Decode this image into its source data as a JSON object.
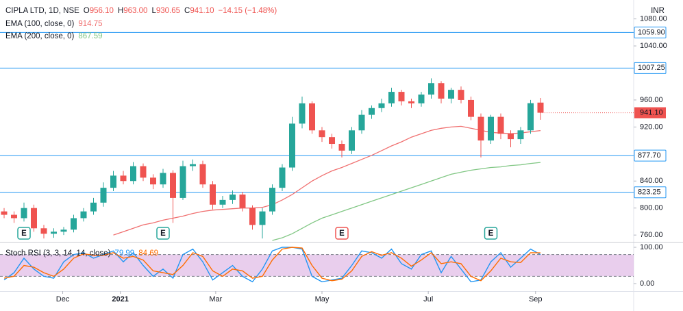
{
  "chart_data": {
    "type": "candlestick",
    "symbol": "CIPLA LTD, 1D, NSE",
    "ohlc_legend": [
      {
        "label": "O",
        "value": 956.1,
        "value_label": "956.10"
      },
      {
        "label": "H",
        "value": 963,
        "value_label": "963.00"
      },
      {
        "label": "L",
        "value": 930.65,
        "value_label": "930.65"
      },
      {
        "label": "C",
        "value": 941.1,
        "value_label": "941.10"
      }
    ],
    "change": "−14.15 (−1.48%)",
    "currency": "INR",
    "up_color": "#26a69a",
    "down_color": "#ef5350",
    "open": [
      795,
      790,
      785,
      800,
      770,
      762,
      765,
      768,
      785,
      795,
      808,
      830,
      848,
      840,
      862,
      845,
      835,
      852,
      815,
      862,
      865,
      835,
      805,
      812,
      820,
      800,
      775,
      795,
      830,
      860,
      925,
      955,
      915,
      905,
      895,
      885,
      915,
      938,
      948,
      955,
      972,
      958,
      955,
      968,
      985,
      962,
      975,
      960,
      935,
      900,
      935,
      910,
      902,
      915,
      956.1
    ],
    "high": [
      800,
      795,
      808,
      805,
      775,
      770,
      772,
      790,
      800,
      815,
      838,
      855,
      855,
      868,
      866,
      850,
      858,
      856,
      870,
      872,
      870,
      840,
      818,
      826,
      824,
      804,
      800,
      835,
      865,
      935,
      965,
      958,
      920,
      910,
      900,
      920,
      945,
      952,
      962,
      978,
      975,
      962,
      972,
      992,
      988,
      978,
      980,
      965,
      940,
      938,
      940,
      915,
      920,
      960,
      963
    ],
    "low": [
      785,
      778,
      780,
      765,
      755,
      756,
      760,
      764,
      780,
      790,
      802,
      825,
      835,
      835,
      840,
      828,
      830,
      778,
      812,
      855,
      830,
      798,
      800,
      806,
      795,
      768,
      755,
      790,
      825,
      855,
      918,
      910,
      898,
      888,
      875,
      880,
      910,
      932,
      942,
      950,
      952,
      948,
      950,
      962,
      955,
      955,
      955,
      930,
      875,
      895,
      902,
      890,
      895,
      910,
      930.65
    ],
    "close": [
      790,
      785,
      800,
      770,
      762,
      765,
      768,
      785,
      795,
      808,
      830,
      848,
      840,
      862,
      845,
      835,
      852,
      815,
      862,
      865,
      835,
      805,
      812,
      820,
      800,
      775,
      795,
      830,
      860,
      925,
      955,
      915,
      905,
      895,
      885,
      915,
      938,
      948,
      955,
      972,
      958,
      955,
      968,
      985,
      962,
      975,
      960,
      935,
      900,
      935,
      910,
      902,
      915,
      955.25,
      941.1
    ],
    "series": [
      {
        "name": "EMA (100, close, 0)",
        "value_label": "914.75",
        "color": "#f07070",
        "values": [
          null,
          null,
          null,
          null,
          null,
          null,
          null,
          null,
          null,
          null,
          null,
          760,
          765,
          770,
          775,
          778,
          782,
          785,
          788,
          792,
          795,
          797,
          798,
          799,
          800,
          800,
          801,
          805,
          812,
          820,
          830,
          840,
          848,
          855,
          860,
          866,
          872,
          878,
          885,
          892,
          898,
          905,
          910,
          915,
          918,
          920,
          921,
          918,
          915,
          912,
          911,
          910,
          911,
          913,
          914.75
        ]
      },
      {
        "name": "EMA (200, close, 0)",
        "value_label": "867.59",
        "color": "#81c784",
        "values": [
          null,
          null,
          null,
          null,
          null,
          null,
          null,
          null,
          null,
          null,
          null,
          null,
          null,
          null,
          null,
          null,
          null,
          null,
          null,
          null,
          null,
          null,
          null,
          null,
          null,
          null,
          null,
          752,
          756,
          762,
          770,
          778,
          785,
          790,
          795,
          800,
          805,
          810,
          815,
          820,
          825,
          830,
          835,
          840,
          845,
          850,
          853,
          856,
          858,
          860,
          861,
          863,
          864,
          866,
          867.59
        ]
      }
    ],
    "ylim": [
      750,
      1108
    ],
    "yticks": [
      {
        "value": 760,
        "label": "760.00"
      },
      {
        "value": 800,
        "label": "800.00"
      },
      {
        "value": 840,
        "label": "840.00"
      },
      {
        "value": 920,
        "label": "920.00"
      },
      {
        "value": 960,
        "label": "960.00"
      },
      {
        "value": 1040,
        "label": "1040.00"
      },
      {
        "value": 1080,
        "label": "1080.00"
      }
    ],
    "levels": [
      {
        "value": 1059.9,
        "label": "1059.90"
      },
      {
        "value": 1007.25,
        "label": "1007.25"
      },
      {
        "value": 877.7,
        "label": "877.70"
      },
      {
        "value": 823.25,
        "label": "823.25"
      }
    ],
    "level_color": "#2196f3",
    "last_price": {
      "value": 941.1,
      "label": "941.10"
    },
    "earnings": [
      {
        "index": 2,
        "label": "E",
        "color": "#26a69a"
      },
      {
        "index": 16,
        "label": "E",
        "color": "#26a69a"
      },
      {
        "index": 34,
        "label": "E",
        "color": "#ef5350"
      },
      {
        "index": 49,
        "label": "E",
        "color": "#26a69a"
      }
    ],
    "xticks": [
      {
        "value": 5.9,
        "label": "Dec"
      },
      {
        "value": 11.7,
        "label": "2021"
      },
      {
        "value": 21.3,
        "label": "Mar"
      },
      {
        "value": 32,
        "label": "May"
      },
      {
        "value": 42.7,
        "label": "Jul"
      },
      {
        "value": 53.5,
        "label": "Sep"
      }
    ],
    "stoch": {
      "name": "Stoch RSI (3, 3, 14, 14, close)",
      "ylim": [
        0,
        100
      ],
      "yticks": [
        {
          "value": 0,
          "label": "0.00"
        },
        {
          "value": 100,
          "label": "100.00"
        }
      ],
      "bands": [
        20,
        80
      ],
      "series": [
        {
          "value_label": "79.99",
          "color": "#2196f3",
          "values": [
            10,
            30,
            70,
            40,
            20,
            15,
            60,
            80,
            85,
            70,
            80,
            90,
            60,
            85,
            50,
            20,
            40,
            15,
            80,
            95,
            60,
            10,
            30,
            50,
            20,
            5,
            40,
            90,
            100,
            100,
            95,
            20,
            5,
            10,
            15,
            50,
            90,
            85,
            70,
            95,
            55,
            40,
            80,
            90,
            30,
            75,
            40,
            5,
            10,
            60,
            85,
            45,
            70,
            95,
            79.99
          ]
        },
        {
          "value_label": "84.69",
          "color": "#ff6d00",
          "values": [
            15,
            20,
            50,
            45,
            30,
            20,
            40,
            70,
            82,
            78,
            78,
            85,
            70,
            75,
            65,
            35,
            30,
            25,
            50,
            85,
            75,
            35,
            20,
            40,
            35,
            15,
            20,
            65,
            95,
            100,
            98,
            50,
            15,
            8,
            12,
            35,
            75,
            88,
            78,
            85,
            70,
            48,
            65,
            85,
            55,
            60,
            55,
            20,
            8,
            35,
            70,
            60,
            58,
            85,
            84.69
          ]
        }
      ]
    }
  }
}
